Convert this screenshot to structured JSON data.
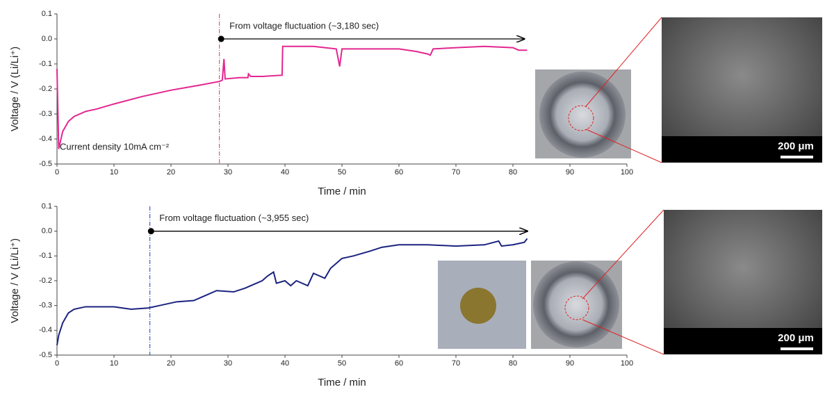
{
  "chart_data": [
    {
      "type": "line",
      "xlabel": "Time / min",
      "ylabel": "Voltage / V (Li/Li⁺)",
      "xlim": [
        0,
        100
      ],
      "xticks": [
        0,
        10,
        20,
        30,
        40,
        50,
        60,
        70,
        80,
        90,
        100
      ],
      "ylim": [
        -0.5,
        0.1
      ],
      "yticks": [
        0.1,
        {
          "value": 0,
          "label": "0.0"
        },
        -0.1,
        -0.2,
        -0.3,
        -0.4,
        -0.5
      ],
      "series": [
        {
          "color": "#e3268f",
          "x": [
            0,
            0.3,
            1,
            2,
            3,
            5,
            7,
            10,
            15,
            20,
            25,
            28.5,
            29,
            29.3,
            29.5,
            32,
            33.5,
            33.6,
            34,
            36,
            39.5,
            39.6,
            45,
            49,
            49.6,
            50,
            55,
            60,
            63,
            65,
            65.5,
            66,
            70,
            75,
            80,
            81,
            82.5
          ],
          "values": [
            -0.12,
            -0.44,
            -0.37,
            -0.33,
            -0.31,
            -0.29,
            -0.28,
            -0.26,
            -0.23,
            -0.205,
            -0.185,
            -0.17,
            -0.165,
            -0.08,
            -0.16,
            -0.155,
            -0.155,
            -0.14,
            -0.15,
            -0.15,
            -0.145,
            -0.03,
            -0.03,
            -0.04,
            -0.11,
            -0.04,
            -0.04,
            -0.04,
            -0.05,
            -0.06,
            -0.065,
            -0.04,
            -0.035,
            -0.03,
            -0.035,
            -0.045,
            -0.045
          ]
        }
      ],
      "vline_x": 28.5,
      "vline_color": "#e3268f",
      "annotation": {
        "text": "From voltage fluctuation (~3,180 sec)",
        "x": [
          28.8,
          82
        ],
        "y": 0
      },
      "note": "Current density 10mA cm⁻²"
    },
    {
      "type": "line",
      "xlabel": "Time / min",
      "ylabel": "Voltage / V (Li/Li⁺)",
      "xlim": [
        0,
        100
      ],
      "xticks": [
        0,
        10,
        20,
        30,
        40,
        50,
        60,
        70,
        80,
        90,
        100
      ],
      "ylim": [
        -0.5,
        0.1
      ],
      "yticks": [
        0.1,
        {
          "value": 0,
          "label": "0.0"
        },
        -0.1,
        -0.2,
        -0.3,
        -0.4,
        -0.5
      ],
      "series": [
        {
          "color": "#1a237e",
          "x": [
            0,
            0.3,
            1,
            2,
            3,
            5,
            8,
            10,
            13,
            16,
            18,
            21,
            24,
            26,
            28,
            31,
            33,
            35,
            36,
            37,
            38,
            38.5,
            40,
            41,
            42,
            44,
            45,
            46,
            47,
            48,
            49,
            50,
            52,
            55,
            57,
            60,
            65,
            70,
            75,
            77.5,
            78,
            80,
            82,
            82.5
          ],
          "values": [
            -0.46,
            -0.42,
            -0.37,
            -0.33,
            -0.315,
            -0.305,
            -0.305,
            -0.305,
            -0.315,
            -0.31,
            -0.3,
            -0.285,
            -0.28,
            -0.26,
            -0.24,
            -0.245,
            -0.23,
            -0.21,
            -0.2,
            -0.18,
            -0.165,
            -0.21,
            -0.2,
            -0.22,
            -0.2,
            -0.22,
            -0.17,
            -0.18,
            -0.19,
            -0.15,
            -0.13,
            -0.11,
            -0.1,
            -0.08,
            -0.065,
            -0.055,
            -0.055,
            -0.06,
            -0.055,
            -0.04,
            -0.06,
            -0.055,
            -0.045,
            -0.03
          ]
        }
      ],
      "vline_x": 16.3,
      "vline_color": "#1a3fbf",
      "annotation": {
        "text": "From voltage fluctuation (~3,955 sec)",
        "x": [
          16.5,
          82.5
        ],
        "y": 0
      }
    }
  ],
  "micrographs": [
    {
      "scale_label": "200 μm"
    },
    {
      "scale_label": "200 μm"
    }
  ]
}
